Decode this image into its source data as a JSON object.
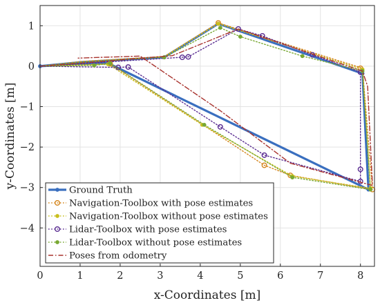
{
  "chart_data": {
    "type": "line",
    "title": "",
    "xlabel": "x-Coordinates [m]",
    "ylabel": "y-Coordinates [m]",
    "xlim": [
      0,
      8.35
    ],
    "ylim": [
      -4.95,
      1.5
    ],
    "xticks": [
      0,
      1,
      2,
      3,
      4,
      5,
      6,
      7,
      8
    ],
    "yticks": [
      1,
      0,
      -1,
      -2,
      -3,
      -4
    ],
    "xtick_labels": [
      "0",
      "1",
      "2",
      "3",
      "4",
      "5",
      "6",
      "7",
      "8"
    ],
    "ytick_labels": [
      "1",
      "0",
      "−1",
      "−2",
      "−3",
      "−4"
    ],
    "grid": true,
    "legend_position": "lower-left",
    "series": [
      {
        "name": "Ground Truth",
        "color": "#3a6fbf",
        "style": "solid",
        "marker": "dot",
        "x": [
          0,
          1.05,
          3.1,
          4.45,
          8.05,
          8.2,
          1.75,
          1.6,
          0
        ],
        "y": [
          0,
          0.1,
          0.22,
          1.05,
          -0.18,
          -3.05,
          0.05,
          0.08,
          0
        ],
        "marker_x": [
          0,
          3.1,
          4.45,
          8.05,
          8.2,
          1.75,
          1.6
        ],
        "marker_y": [
          0,
          0.22,
          1.05,
          -0.18,
          -3.05,
          0.05,
          0.08
        ]
      },
      {
        "name": "Navigation-Toolbox with pose estimates",
        "color": "#d4851c",
        "style": "dotted",
        "marker": "circle",
        "x": [
          0,
          1.05,
          3.1,
          4.45,
          8.05,
          8.3,
          6.25,
          5.6,
          1.75,
          0
        ],
        "y": [
          0,
          0.12,
          0.24,
          1.07,
          -0.05,
          -3.05,
          -2.7,
          -2.45,
          0.06,
          0
        ],
        "marker_x": [
          4.45,
          8.0,
          8.3,
          6.25,
          5.6,
          1.75
        ],
        "marker_y": [
          1.07,
          -0.05,
          -3.05,
          -2.7,
          -2.45,
          0.06
        ]
      },
      {
        "name": "Navigation-Toolbox without pose estimates",
        "color": "#c9bf1e",
        "style": "dotted",
        "marker": "dot",
        "x": [
          0,
          1.05,
          3.1,
          4.45,
          8.05,
          8.25,
          6.3,
          4.05,
          1.7,
          0
        ],
        "y": [
          0,
          0.1,
          0.23,
          1.05,
          -0.08,
          -3.02,
          -2.72,
          -1.45,
          0.05,
          0
        ],
        "marker_x": [
          4.45,
          8.05,
          8.25,
          6.3,
          4.05,
          1.7
        ],
        "marker_y": [
          1.05,
          -0.08,
          -3.02,
          -2.72,
          -1.45,
          0.05
        ]
      },
      {
        "name": "Lidar-Toolbox with pose estimates",
        "color": "#5a2d91",
        "style": "dotted",
        "marker": "circle",
        "x": [
          0,
          3.7,
          4.95,
          5.55,
          6.8,
          8.0,
          8.0,
          8.0,
          5.6,
          4.5,
          2.2,
          1.95,
          0
        ],
        "y": [
          0,
          0.23,
          0.92,
          0.75,
          0.28,
          -0.15,
          -2.55,
          -2.85,
          -2.2,
          -1.5,
          -0.02,
          -0.03,
          0
        ],
        "marker_x": [
          3.55,
          3.7,
          4.95,
          5.55,
          6.8,
          8.0,
          8.0,
          8.0,
          5.6,
          4.5,
          2.2,
          1.95
        ],
        "marker_y": [
          0.22,
          0.23,
          0.92,
          0.75,
          0.28,
          -0.15,
          -2.55,
          -2.85,
          -2.2,
          -1.5,
          -0.02,
          -0.03
        ]
      },
      {
        "name": "Lidar-Toolbox without pose estimates",
        "color": "#78a832",
        "style": "dotted",
        "marker": "dot",
        "x": [
          0,
          1.05,
          3.1,
          4.5,
          5.0,
          6.55,
          8.05,
          8.25,
          6.3,
          4.1,
          1.75,
          1.35,
          0
        ],
        "y": [
          0,
          0.1,
          0.22,
          0.95,
          0.73,
          0.25,
          -0.12,
          -3.05,
          -2.75,
          -1.45,
          0.07,
          0.02,
          0
        ],
        "marker_x": [
          3.1,
          4.5,
          5.0,
          6.55,
          8.05,
          8.25,
          6.3,
          4.1,
          1.75,
          1.35
        ],
        "marker_y": [
          0.22,
          0.95,
          0.73,
          0.25,
          -0.12,
          -3.05,
          -2.75,
          -1.45,
          0.07,
          0.02
        ]
      },
      {
        "name": "Poses from odometry",
        "color": "#a8322d",
        "style": "dashdot",
        "marker": "none",
        "x": [
          0,
          1.85,
          2.55,
          3.3,
          4.95,
          8.05,
          8.18,
          8.3,
          6.25,
          4.5,
          2.5,
          0.95
        ],
        "y": [
          0,
          0.14,
          0.2,
          0.26,
          0.92,
          -0.12,
          -0.5,
          -2.95,
          -2.4,
          -1.1,
          0.25,
          0.2
        ]
      }
    ]
  }
}
